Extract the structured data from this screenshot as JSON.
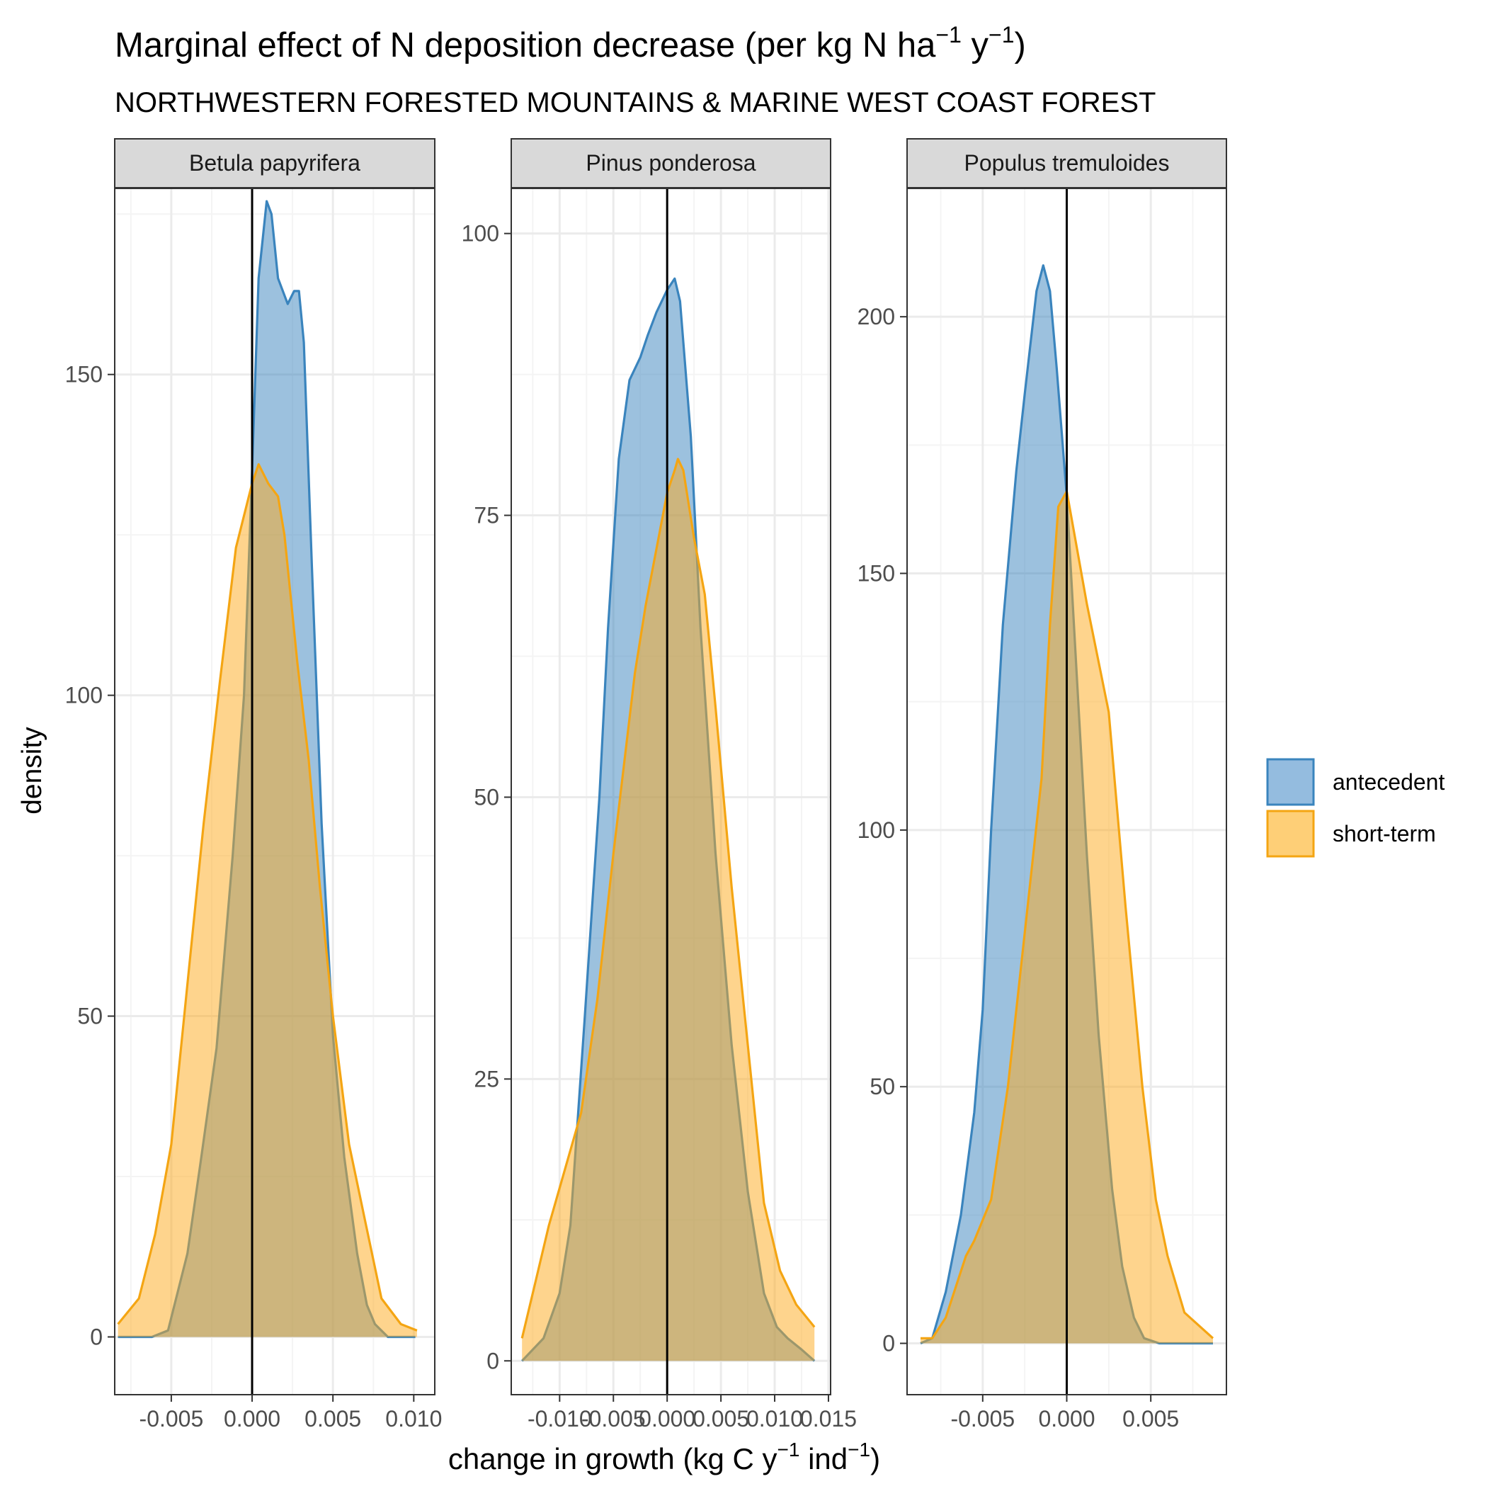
{
  "figure": {
    "title_main": "Marginal effect of N deposition decrease (per kg N ha",
    "title_sup1": "−1",
    "title_mid": " y",
    "title_sup2": "−1",
    "title_end": ")",
    "subtitle": "NORTHWESTERN FORESTED MOUNTAINS & MARINE WEST COAST FOREST",
    "ylabel": "density",
    "xlabel_main": "change in growth (kg C y",
    "xlabel_sup1": "−1",
    "xlabel_mid": " ind",
    "xlabel_sup2": "−1",
    "xlabel_end": ")"
  },
  "legend": {
    "placement": "right",
    "items": [
      {
        "label": "antecedent",
        "fill": "#94bcdf",
        "stroke": "#3a84bd"
      },
      {
        "label": "short-term",
        "fill": "#fecf77",
        "stroke": "#f4a513"
      }
    ]
  },
  "colors": {
    "antecedent_fill": "#3a84bd",
    "antecedent_line": "#3a84bd",
    "short_term_fill": "#fdaa1b",
    "short_term_line": "#f4a513",
    "strip_bg": "#d9d9d9",
    "grid_major": "#ebebeb",
    "grid_minor": "#f4f4f4"
  },
  "chart_data": [
    {
      "type": "area",
      "panel": "Betula papyrifera",
      "xlim": [
        -0.0085,
        0.0113
      ],
      "ylim": [
        -9,
        179
      ],
      "x_ticks": [
        -0.005,
        0.0,
        0.005,
        0.01
      ],
      "x_tick_labels": [
        "-0.005",
        "0.000",
        "0.005",
        "0.010"
      ],
      "y_ticks": [
        0,
        50,
        100,
        150
      ],
      "y_tick_labels": [
        "0",
        "50",
        "100",
        "150"
      ],
      "vline_x": 0.0,
      "series": [
        {
          "name": "antecedent",
          "x": [
            -0.0083,
            -0.0062,
            -0.0052,
            -0.004,
            -0.0032,
            -0.0022,
            -0.0012,
            -0.0005,
            0.0,
            0.0004,
            0.0009,
            0.0012,
            0.0016,
            0.0022,
            0.0026,
            0.0029,
            0.0032,
            0.0037,
            0.0043,
            0.005,
            0.0057,
            0.0065,
            0.0071,
            0.0076,
            0.0084,
            0.0101
          ],
          "y": [
            0,
            0,
            1,
            13,
            27,
            45,
            75,
            100,
            135,
            165,
            177,
            175,
            165,
            161,
            163,
            163,
            155,
            120,
            80,
            47,
            28,
            13,
            5,
            2,
            0,
            0
          ]
        },
        {
          "name": "short-term",
          "x": [
            -0.0083,
            -0.007,
            -0.006,
            -0.005,
            -0.004,
            -0.003,
            -0.002,
            -0.001,
            0.0,
            0.0004,
            0.001,
            0.0016,
            0.002,
            0.0028,
            0.0035,
            0.0042,
            0.005,
            0.006,
            0.007,
            0.008,
            0.0092,
            0.0102
          ],
          "y": [
            2,
            6,
            16,
            30,
            55,
            80,
            102,
            123,
            133,
            136,
            133,
            131,
            125,
            105,
            90,
            70,
            50,
            30,
            18,
            6,
            2,
            1
          ]
        }
      ]
    },
    {
      "type": "area",
      "panel": "Pinus ponderosa",
      "xlim": [
        -0.0145,
        0.0152
      ],
      "ylim": [
        -3,
        104
      ],
      "x_ticks": [
        -0.01,
        -0.005,
        0.0,
        0.005,
        0.01,
        0.015
      ],
      "x_tick_labels": [
        "-0.010",
        "-0.005",
        "0.000",
        "0.005",
        "0.010",
        "0.015"
      ],
      "y_ticks": [
        0,
        25,
        50,
        75,
        100
      ],
      "y_tick_labels": [
        "0",
        "25",
        "50",
        "75",
        "100"
      ],
      "vline_x": 0.0,
      "series": [
        {
          "name": "antecedent",
          "x": [
            -0.0135,
            -0.0115,
            -0.01,
            -0.009,
            -0.0077,
            -0.0063,
            -0.0055,
            -0.0045,
            -0.0035,
            -0.0025,
            -0.0018,
            -0.001,
            0.0,
            0.0007,
            0.0012,
            0.0022,
            0.0031,
            0.0045,
            0.006,
            0.0075,
            0.009,
            0.0102,
            0.0112,
            0.0125,
            0.0137
          ],
          "y": [
            0,
            2,
            6,
            12,
            30,
            50,
            65,
            80,
            87,
            89,
            91,
            93,
            95,
            96,
            94,
            82,
            65,
            45,
            28,
            15,
            6,
            3,
            2,
            1,
            0
          ]
        },
        {
          "name": "short-term",
          "x": [
            -0.0135,
            -0.0125,
            -0.011,
            -0.0095,
            -0.008,
            -0.0065,
            -0.005,
            -0.003,
            -0.002,
            -0.001,
            0.0,
            0.0007,
            0.001,
            0.0015,
            0.0025,
            0.0035,
            0.0045,
            0.006,
            0.0075,
            0.009,
            0.0105,
            0.012,
            0.0137
          ],
          "y": [
            2,
            6,
            12,
            17,
            22,
            32,
            45,
            61,
            67,
            72,
            77,
            79,
            80,
            79,
            73,
            68,
            58,
            42,
            28,
            14,
            8,
            5,
            3
          ]
        }
      ]
    },
    {
      "type": "area",
      "panel": "Populus tremuloides",
      "xlim": [
        -0.0095,
        0.0095
      ],
      "ylim": [
        -10,
        225
      ],
      "x_ticks": [
        -0.005,
        0.0,
        0.005
      ],
      "x_tick_labels": [
        "-0.005",
        "0.000",
        "0.005"
      ],
      "y_ticks": [
        0,
        50,
        100,
        150,
        200
      ],
      "y_tick_labels": [
        "0",
        "50",
        "100",
        "150",
        "200"
      ],
      "vline_x": 0.0,
      "series": [
        {
          "name": "antecedent",
          "x": [
            -0.0087,
            -0.008,
            -0.0072,
            -0.0063,
            -0.0055,
            -0.005,
            -0.0045,
            -0.0038,
            -0.003,
            -0.0025,
            -0.0018,
            -0.0014,
            -0.001,
            -0.0006,
            0.0,
            0.0006,
            0.0012,
            0.0019,
            0.0027,
            0.0033,
            0.004,
            0.0046,
            0.0055,
            0.0075,
            0.0087
          ],
          "y": [
            0,
            1,
            10,
            25,
            45,
            65,
            100,
            140,
            170,
            185,
            205,
            210,
            205,
            190,
            165,
            130,
            95,
            60,
            30,
            15,
            5,
            1,
            0,
            0,
            0
          ]
        },
        {
          "name": "short-term",
          "x": [
            -0.0087,
            -0.008,
            -0.0072,
            -0.0065,
            -0.006,
            -0.0055,
            -0.0045,
            -0.0035,
            -0.0025,
            -0.0015,
            -0.001,
            -0.0005,
            0.0,
            0.0012,
            0.0025,
            0.0035,
            0.0045,
            0.0053,
            0.006,
            0.007,
            0.0087
          ],
          "y": [
            1,
            1,
            5,
            12,
            17,
            20,
            28,
            50,
            80,
            110,
            140,
            163,
            166,
            144,
            123,
            85,
            50,
            28,
            17,
            6,
            1
          ]
        }
      ]
    }
  ]
}
